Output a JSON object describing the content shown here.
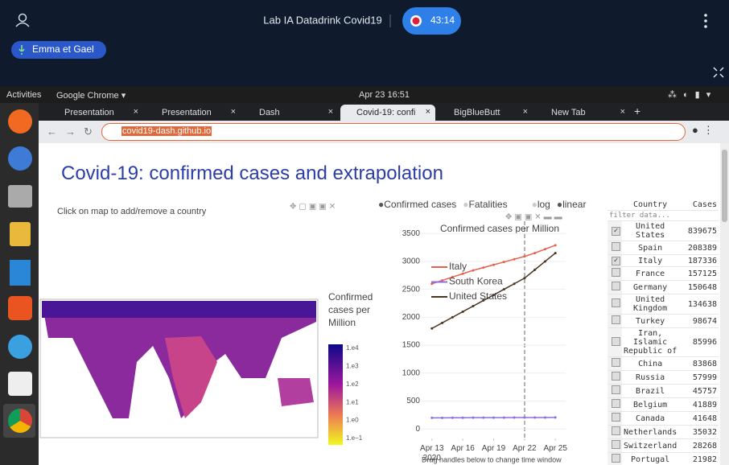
{
  "meeting": {
    "title": "Lab IA Datadrink Covid19",
    "timer": "43:14",
    "speaker": "Emma et Gael"
  },
  "system_bar": {
    "activities": "Activities",
    "app": "Google Chrome",
    "clock": "Apr 23  16:51"
  },
  "browser": {
    "tabs": [
      "Presentation",
      "Presentation",
      "Dash",
      "Covid-19: confi",
      "BigBlueButt",
      "New Tab"
    ],
    "active_tab": 3,
    "url": "covid19-dash.github.io"
  },
  "app": {
    "title": "Covid-19: confirmed cases and extrapolation",
    "map_hint": "Click on map to add/remove a country",
    "colorbar": {
      "title": "Confirmed cases per Million",
      "ticks": [
        "1.e4",
        "1.e3",
        "1.e2",
        "1.e1",
        "1.e0",
        "1.e−1"
      ]
    },
    "options": [
      "Confirmed cases",
      "Fatalities",
      "log",
      "linear"
    ],
    "selected": [
      true,
      false,
      false,
      true
    ],
    "table": {
      "columns": [
        "Country",
        "Cases"
      ],
      "filter_placeholder": "filter data...",
      "rows": [
        {
          "country": "United States",
          "cases": 839675,
          "checked": true
        },
        {
          "country": "Spain",
          "cases": 208389,
          "checked": false
        },
        {
          "country": "Italy",
          "cases": 187336,
          "checked": true
        },
        {
          "country": "France",
          "cases": 157125,
          "checked": false
        },
        {
          "country": "Germany",
          "cases": 150648,
          "checked": false
        },
        {
          "country": "United Kingdom",
          "cases": 134638,
          "checked": false
        },
        {
          "country": "Turkey",
          "cases": 98674,
          "checked": false
        },
        {
          "country": "Iran, Islamic Republic of",
          "cases": 85996,
          "checked": false
        },
        {
          "country": "China",
          "cases": 83868,
          "checked": false
        },
        {
          "country": "Russia",
          "cases": 57999,
          "checked": false
        },
        {
          "country": "Brazil",
          "cases": 45757,
          "checked": false
        },
        {
          "country": "Belgium",
          "cases": 41889,
          "checked": false
        },
        {
          "country": "Canada",
          "cases": 41648,
          "checked": false
        },
        {
          "country": "Netherlands",
          "cases": 35032,
          "checked": false
        },
        {
          "country": "Switzerland",
          "cases": 28268,
          "checked": false
        },
        {
          "country": "Portugal",
          "cases": 21982,
          "checked": false
        }
      ]
    }
  },
  "chart_data": {
    "type": "line",
    "title": "Confirmed cases per Million",
    "x": [
      "2020-04-13",
      "2020-04-14",
      "2020-04-15",
      "2020-04-16",
      "2020-04-17",
      "2020-04-18",
      "2020-04-19",
      "2020-04-20",
      "2020-04-21",
      "2020-04-22",
      "2020-04-23",
      "2020-04-24",
      "2020-04-25"
    ],
    "series": [
      {
        "name": "Italy",
        "color": "#e8604c",
        "values": [
          2600,
          2660,
          2720,
          2780,
          2840,
          2890,
          2940,
          2990,
          3040,
          3090,
          3150,
          3220,
          3290
        ]
      },
      {
        "name": "South Korea",
        "color": "#8b6fe0",
        "values": [
          200,
          200,
          201,
          201,
          202,
          202,
          203,
          203,
          204,
          204,
          205,
          205,
          206
        ]
      },
      {
        "name": "United States",
        "color": "#4a3522",
        "values": [
          1800,
          1900,
          2000,
          2100,
          2200,
          2300,
          2400,
          2500,
          2600,
          2700,
          2850,
          3000,
          3150
        ]
      }
    ],
    "xlim": [
      "2020-04-12",
      "2020-04-26"
    ],
    "xticks": [
      {
        "value": "2020-04-13",
        "label": "Apr 13\n2020"
      },
      {
        "value": "2020-04-16",
        "label": "Apr 16"
      },
      {
        "value": "2020-04-19",
        "label": "Apr 19"
      },
      {
        "value": "2020-04-22",
        "label": "Apr 22"
      },
      {
        "value": "2020-04-25",
        "label": "Apr 25"
      }
    ],
    "ylim": [
      -170,
      3720
    ],
    "yticks": [
      0,
      500,
      1000,
      1500,
      2000,
      2500,
      3000,
      3500
    ],
    "grid": true,
    "note": "Drag handles below to change time window"
  }
}
